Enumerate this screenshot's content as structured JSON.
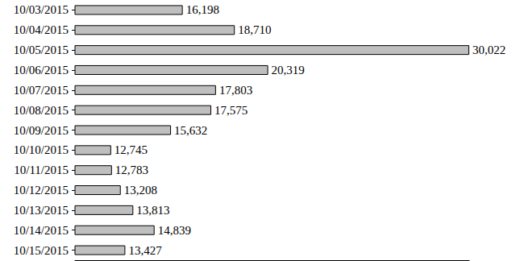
{
  "chart_data": {
    "type": "bar",
    "orientation": "horizontal",
    "categories": [
      "10/03/2015",
      "10/04/2015",
      "10/05/2015",
      "10/06/2015",
      "10/07/2015",
      "10/08/2015",
      "10/09/2015",
      "10/10/2015",
      "10/11/2015",
      "10/12/2015",
      "10/13/2015",
      "10/14/2015",
      "10/15/2015"
    ],
    "values": [
      16198,
      18710,
      30022,
      20319,
      17803,
      17575,
      15632,
      12745,
      12783,
      13208,
      13813,
      14839,
      13427
    ],
    "value_labels": [
      "16,198",
      "18,710",
      "30,022",
      "20,319",
      "17,803",
      "17,575",
      "15,632",
      "12,745",
      "12,783",
      "13,208",
      "13,813",
      "14,839",
      "13,427"
    ],
    "color": "#bfbfbf",
    "xlim": [
      11000,
      30022
    ],
    "data_labels": true,
    "tick_labels": "y",
    "grid": false
  }
}
